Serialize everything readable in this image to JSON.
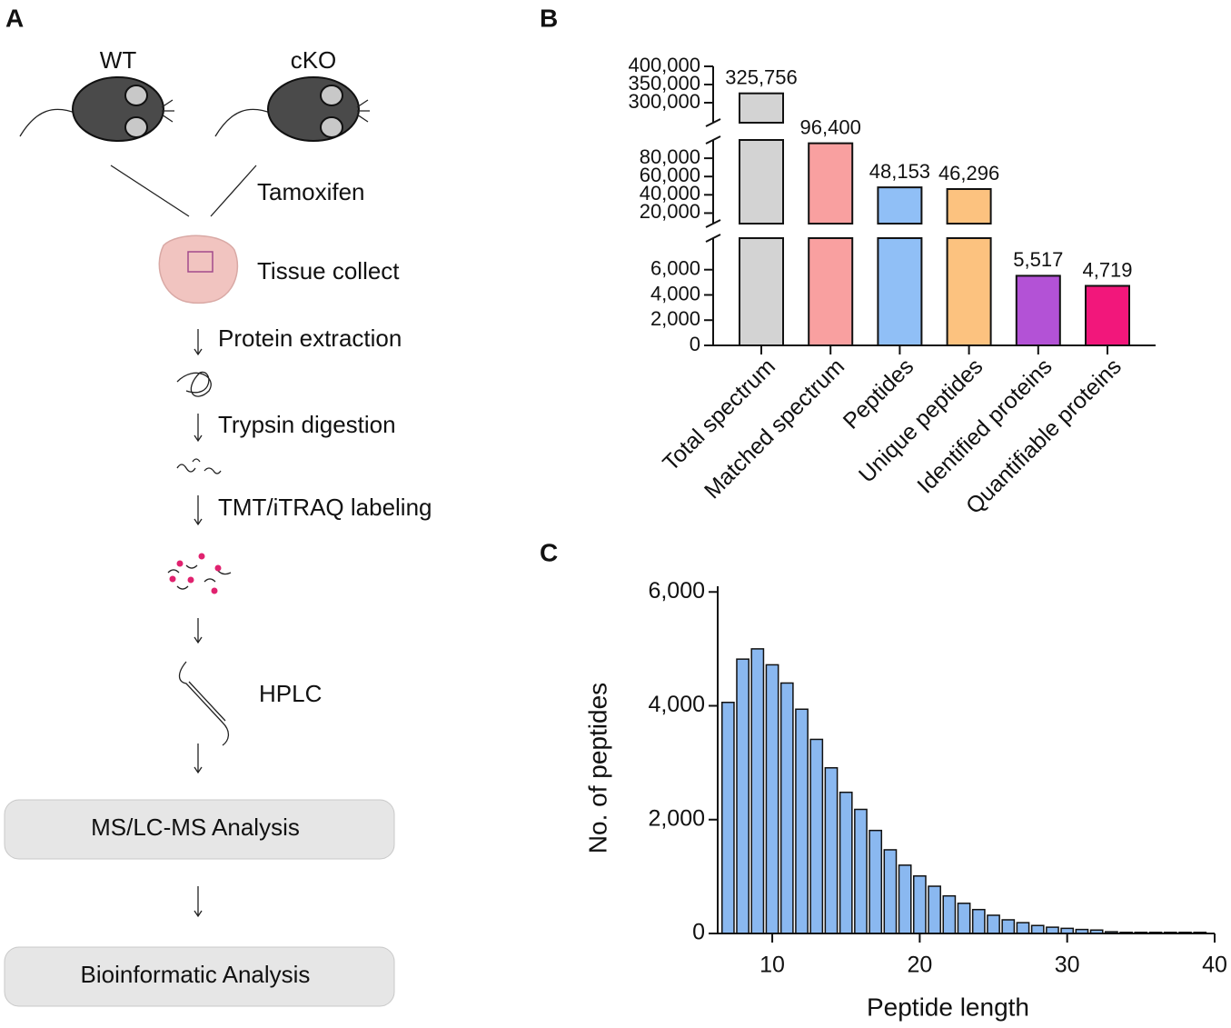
{
  "panel_labels": [
    "A",
    "B",
    "C"
  ],
  "diagram": {
    "mice": [
      "WT",
      "cKO"
    ],
    "treatment": "Tamoxifen",
    "steps": [
      "Tissue collect",
      "Protein extraction",
      "Trypsin digestion",
      "TMT/iTRAQ labeling",
      "HPLC"
    ],
    "boxes": [
      "MS/LC-MS Analysis",
      "Bioinformatic Analysis"
    ]
  },
  "chart_data": [
    {
      "type": "bar",
      "categories": [
        "Total spectrum",
        "Matched spectrum",
        "Peptides",
        "Unique peptides",
        "Identified proteins",
        "Quantifiable proteins"
      ],
      "values": [
        325756,
        96400,
        48153,
        46296,
        5517,
        4719
      ],
      "value_labels": [
        "325,756",
        "96,400",
        "48,153",
        "46,296",
        "5,517",
        "4,719"
      ],
      "colors": [
        "#d3d3d3",
        "#f9a0a0",
        "#90bff6",
        "#fcc27f",
        "#b352d6",
        "#f2177b"
      ],
      "y_segments": [
        {
          "ylim": [
            0,
            8500
          ],
          "yticks": [
            0,
            {
              "value": 2000,
              "label": "2,000"
            },
            {
              "value": 4000,
              "label": "4,000"
            },
            {
              "value": 6000,
              "label": "6,000"
            }
          ]
        },
        {
          "ylim": [
            8500,
            100000
          ],
          "yticks": [
            {
              "value": 20000,
              "label": "20,000"
            },
            {
              "value": 40000,
              "label": "40,000"
            },
            {
              "value": 60000,
              "label": "60,000"
            },
            {
              "value": 80000,
              "label": "80,000"
            }
          ]
        },
        {
          "ylim": [
            245000,
            400000
          ],
          "yticks": [
            {
              "value": 300000,
              "label": "300,000"
            },
            {
              "value": 350000,
              "label": "350,000"
            },
            {
              "value": 400000,
              "label": "400,000"
            }
          ]
        }
      ]
    },
    {
      "type": "histogram",
      "xlabel": "Peptide length",
      "ylabel": "No. of peptides",
      "color": "#8ab8f0",
      "bins": [
        6.5,
        7.5,
        8.5,
        9.5,
        10.5,
        11.5,
        12.5,
        13.5,
        14.5,
        15.5,
        16.5,
        17.5,
        18.5,
        19.5,
        20.5,
        21.5,
        22.5,
        23.5,
        24.5,
        25.5,
        26.5,
        27.5,
        28.5,
        29.5,
        30.5,
        31.5,
        32.5,
        33.5,
        34.5,
        35.5,
        36.5,
        37.5,
        38.5,
        39.5
      ],
      "values": [
        4060,
        4820,
        5000,
        4720,
        4400,
        3940,
        3410,
        2910,
        2480,
        2180,
        1810,
        1470,
        1200,
        1010,
        830,
        660,
        530,
        420,
        320,
        240,
        190,
        140,
        110,
        90,
        70,
        60,
        30,
        20,
        20,
        20,
        20,
        20,
        20
      ],
      "xlim": [
        6.3,
        40
      ],
      "xticks": [
        10,
        20,
        30,
        40
      ],
      "ylim": [
        0,
        6100
      ],
      "yticks": [
        0,
        {
          "value": 2000,
          "label": "2,000"
        },
        {
          "value": 4000,
          "label": "4,000"
        },
        {
          "value": 6000,
          "label": "6,000"
        }
      ]
    }
  ]
}
